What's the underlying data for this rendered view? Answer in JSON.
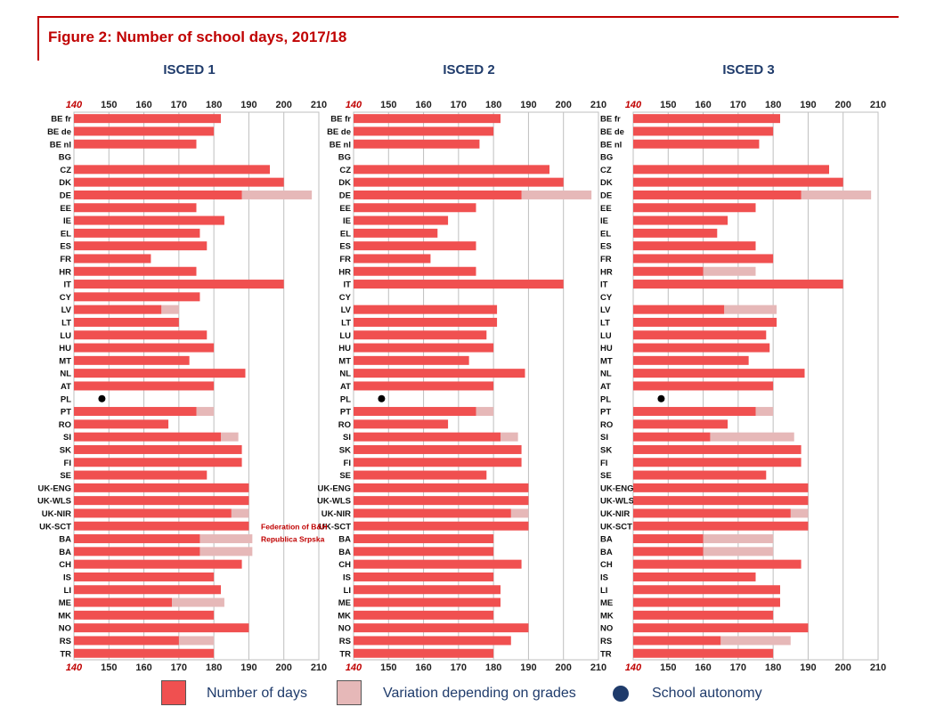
{
  "title": "Figure 2: Number of school days, 2017/18",
  "colors": {
    "days": "#f05050",
    "variation": "#e6b8b8",
    "autonomy": "#000000",
    "autonomy_legend": "#1f3b6b",
    "accent": "#c00000",
    "panel_title": "#1f3b6b"
  },
  "legend": {
    "days_label": "Number of days",
    "variation_label": "Variation depending on grades",
    "autonomy_label": "School autonomy"
  },
  "annotations": [
    {
      "text": "Federation of B&H",
      "row": 32,
      "panel": 0
    },
    {
      "text": "Republica Srpska",
      "row": 33,
      "panel": 0
    }
  ],
  "chart_data": [
    {
      "type": "bar",
      "orientation": "horizontal",
      "title": "ISCED 1",
      "xlim": [
        140,
        210
      ],
      "xticks": [
        "140",
        "150",
        "160",
        "170",
        "180",
        "190",
        "200",
        "210"
      ],
      "categories": [
        "BE fr",
        "BE de",
        "BE nl",
        "BG",
        "CZ",
        "DK",
        "DE",
        "EE",
        "IE",
        "EL",
        "ES",
        "FR",
        "HR",
        "IT",
        "CY",
        "LV",
        "LT",
        "LU",
        "HU",
        "MT",
        "NL",
        "AT",
        "PL",
        "PT",
        "RO",
        "SI",
        "SK",
        "FI",
        "SE",
        "UK-ENG",
        "UK-WLS",
        "UK-NIR",
        "UK-SCT",
        "BA",
        "BA",
        "CH",
        "IS",
        "LI",
        "ME",
        "MK",
        "NO",
        "RS",
        "TR"
      ],
      "series": [
        {
          "name": "Number of days",
          "values": [
            182,
            180,
            175,
            null,
            196,
            200,
            188,
            175,
            183,
            176,
            178,
            162,
            175,
            200,
            176,
            165,
            170,
            178,
            180,
            173,
            189,
            180,
            null,
            175,
            167,
            182,
            188,
            188,
            178,
            190,
            190,
            185,
            190,
            176,
            176,
            188,
            180,
            182,
            168,
            180,
            190,
            170,
            180
          ]
        },
        {
          "name": "Variation depending on grades",
          "values": [
            null,
            null,
            null,
            null,
            null,
            null,
            208,
            null,
            null,
            null,
            null,
            null,
            null,
            null,
            null,
            170,
            null,
            null,
            null,
            null,
            null,
            null,
            null,
            180,
            null,
            187,
            null,
            null,
            null,
            null,
            null,
            190,
            null,
            191,
            191,
            null,
            null,
            null,
            183,
            null,
            null,
            180,
            null
          ]
        },
        {
          "name": "School autonomy",
          "values": [
            null,
            null,
            null,
            null,
            null,
            null,
            null,
            null,
            null,
            null,
            null,
            null,
            null,
            null,
            null,
            null,
            null,
            null,
            null,
            null,
            null,
            null,
            148,
            null,
            null,
            null,
            null,
            null,
            null,
            null,
            null,
            null,
            null,
            null,
            null,
            null,
            null,
            null,
            null,
            null,
            null,
            null,
            null
          ]
        }
      ]
    },
    {
      "type": "bar",
      "orientation": "horizontal",
      "title": "ISCED 2",
      "xlim": [
        140,
        210
      ],
      "xticks": [
        "140",
        "150",
        "160",
        "170",
        "180",
        "190",
        "200",
        "210"
      ],
      "categories": [
        "BE fr",
        "BE de",
        "BE nl",
        "BG",
        "CZ",
        "DK",
        "DE",
        "EE",
        "IE",
        "EL",
        "ES",
        "FR",
        "HR",
        "IT",
        "CY",
        "LV",
        "LT",
        "LU",
        "HU",
        "MT",
        "NL",
        "AT",
        "PL",
        "PT",
        "RO",
        "SI",
        "SK",
        "FI",
        "SE",
        "UK-ENG",
        "UK-WLS",
        "UK-NIR",
        "UK-SCT",
        "BA",
        "BA",
        "CH",
        "IS",
        "LI",
        "ME",
        "MK",
        "NO",
        "RS",
        "TR"
      ],
      "series": [
        {
          "name": "Number of days",
          "values": [
            182,
            180,
            176,
            null,
            196,
            200,
            188,
            175,
            167,
            164,
            175,
            162,
            175,
            200,
            null,
            181,
            181,
            178,
            180,
            173,
            189,
            180,
            null,
            175,
            167,
            182,
            188,
            188,
            178,
            190,
            190,
            185,
            190,
            180,
            180,
            188,
            180,
            182,
            182,
            180,
            190,
            185,
            180
          ]
        },
        {
          "name": "Variation depending on grades",
          "values": [
            null,
            null,
            null,
            null,
            null,
            null,
            208,
            null,
            null,
            null,
            null,
            null,
            null,
            null,
            null,
            null,
            null,
            null,
            null,
            null,
            null,
            null,
            null,
            180,
            null,
            187,
            null,
            null,
            null,
            null,
            null,
            190,
            null,
            null,
            null,
            null,
            null,
            null,
            null,
            null,
            null,
            null,
            null
          ]
        },
        {
          "name": "School autonomy",
          "values": [
            null,
            null,
            null,
            null,
            null,
            null,
            null,
            null,
            null,
            null,
            null,
            null,
            null,
            null,
            null,
            null,
            null,
            null,
            null,
            null,
            null,
            null,
            148,
            null,
            null,
            null,
            null,
            null,
            null,
            null,
            null,
            null,
            null,
            null,
            null,
            null,
            null,
            null,
            null,
            null,
            null,
            null,
            null
          ]
        }
      ]
    },
    {
      "type": "bar",
      "orientation": "horizontal",
      "title": "ISCED 3",
      "xlim": [
        140,
        210
      ],
      "xticks": [
        "140",
        "150",
        "160",
        "170",
        "180",
        "190",
        "200",
        "210"
      ],
      "categories": [
        "BE fr",
        "BE de",
        "BE nl",
        "BG",
        "CZ",
        "DK",
        "DE",
        "EE",
        "IE",
        "EL",
        "ES",
        "FR",
        "HR",
        "IT",
        "CY",
        "LV",
        "LT",
        "LU",
        "HU",
        "MT",
        "NL",
        "AT",
        "PL",
        "PT",
        "RO",
        "SI",
        "SK",
        "FI",
        "SE",
        "UK-ENG",
        "UK-WLS",
        "UK-NIR",
        "UK-SCT",
        "BA",
        "BA",
        "CH",
        "IS",
        "LI",
        "ME",
        "MK",
        "NO",
        "RS",
        "TR"
      ],
      "series": [
        {
          "name": "Number of days",
          "values": [
            182,
            180,
            176,
            null,
            196,
            200,
            188,
            175,
            167,
            164,
            175,
            180,
            160,
            200,
            null,
            166,
            181,
            178,
            179,
            173,
            189,
            180,
            null,
            175,
            167,
            162,
            188,
            188,
            178,
            190,
            190,
            185,
            190,
            160,
            160,
            188,
            175,
            182,
            182,
            180,
            190,
            165,
            180
          ]
        },
        {
          "name": "Variation depending on grades",
          "values": [
            null,
            null,
            null,
            null,
            null,
            null,
            208,
            null,
            null,
            null,
            null,
            null,
            175,
            null,
            null,
            181,
            null,
            null,
            null,
            null,
            null,
            null,
            null,
            180,
            null,
            186,
            null,
            null,
            null,
            null,
            null,
            190,
            null,
            180,
            180,
            null,
            null,
            null,
            null,
            null,
            null,
            185,
            null
          ]
        },
        {
          "name": "School autonomy",
          "values": [
            null,
            null,
            null,
            null,
            null,
            null,
            null,
            null,
            null,
            null,
            null,
            null,
            null,
            null,
            null,
            null,
            null,
            null,
            null,
            null,
            null,
            null,
            148,
            null,
            null,
            null,
            null,
            null,
            null,
            null,
            null,
            null,
            null,
            null,
            null,
            null,
            null,
            null,
            null,
            null,
            null,
            null,
            null
          ]
        }
      ]
    }
  ]
}
